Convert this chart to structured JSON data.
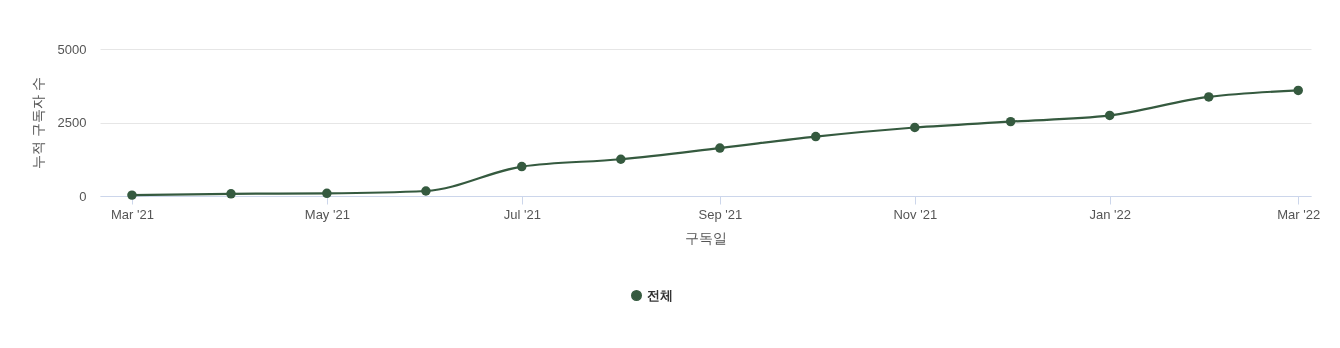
{
  "chart_data": {
    "type": "line",
    "xlabel": "구독일",
    "ylabel": "누적 구독자 수",
    "x": [
      "2021-03-01",
      "2021-04-01",
      "2021-05-01",
      "2021-06-01",
      "2021-07-01",
      "2021-08-01",
      "2021-09-01",
      "2021-10-01",
      "2021-11-01",
      "2021-12-01",
      "2022-01-01",
      "2022-02-01",
      "2022-03-01"
    ],
    "series": [
      {
        "name": "전체",
        "color": "#355a3f",
        "values": [
          30,
          75,
          90,
          170,
          1000,
          1250,
          1630,
          2020,
          2330,
          2530,
          2740,
          3370,
          3590
        ]
      }
    ],
    "xlim": [
      "2021-02-19",
      "2022-03-05"
    ],
    "xticks": [
      {
        "value": "2021-03-01",
        "label": "Mar '21"
      },
      {
        "value": "2021-05-01",
        "label": "May '21"
      },
      {
        "value": "2021-07-01",
        "label": "Jul '21"
      },
      {
        "value": "2021-09-01",
        "label": "Sep '21"
      },
      {
        "value": "2021-11-01",
        "label": "Nov '21"
      },
      {
        "value": "2022-01-01",
        "label": "Jan '22"
      },
      {
        "value": "2022-03-01",
        "label": "Mar '22"
      }
    ],
    "ylim": [
      0,
      5000
    ],
    "yticks": [
      0,
      2500,
      5000
    ],
    "grid": "y",
    "legend": "bottom",
    "marker": "circle",
    "line_style": "solid"
  }
}
